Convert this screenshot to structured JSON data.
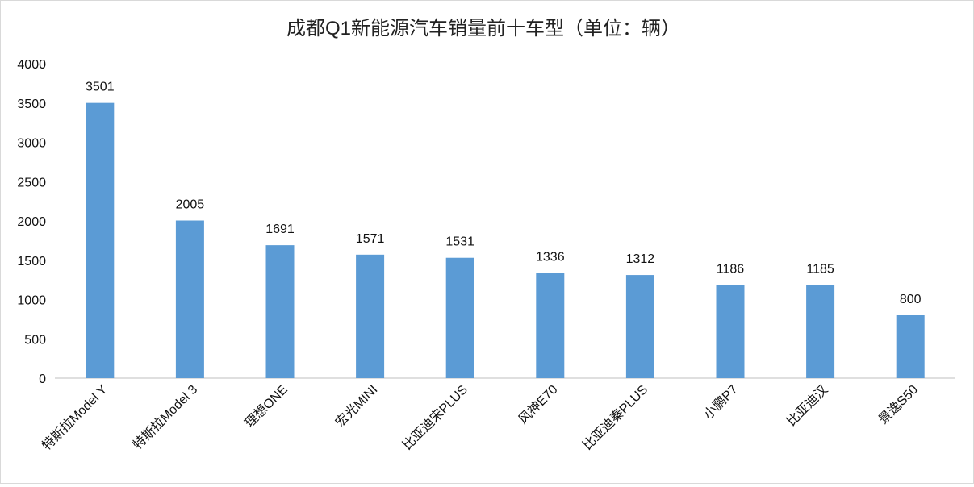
{
  "chart_data": {
    "type": "bar",
    "title": "成都Q1新能源汽车销量前十车型（单位：辆）",
    "categories": [
      "特斯拉Model Y",
      "特斯拉Model 3",
      "理想ONE",
      "宏光MINI",
      "比亚迪宋PLUS",
      "风神E70",
      "比亚迪秦PLUS",
      "小鹏P7",
      "比亚迪汉",
      "景逸S50"
    ],
    "values": [
      3501,
      2005,
      1691,
      1571,
      1531,
      1336,
      1312,
      1186,
      1185,
      800
    ],
    "ylim": [
      0,
      4000
    ],
    "yticks": [
      0,
      500,
      1000,
      1500,
      2000,
      2500,
      3000,
      3500,
      4000
    ],
    "grid": false,
    "data_labels": true,
    "bar_color": "#5b9bd5"
  }
}
